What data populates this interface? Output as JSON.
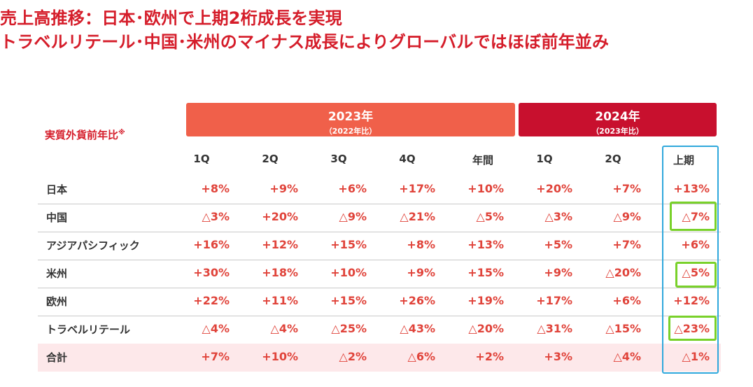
{
  "title": {
    "line1": "売上高推移：日本･欧州で上期2桁成長を実現",
    "line2": "トラベルリテール･中国･米州のマイナス成長によりグローバルではほぼ前年並み"
  },
  "metric_label": "実質外貨前年比",
  "metric_mark": "※",
  "banner_2023": {
    "year": "2023年",
    "sub": "（2022年比）"
  },
  "banner_2024": {
    "year": "2024年",
    "sub": "（2023年比）"
  },
  "columns": [
    "1Q",
    "2Q",
    "3Q",
    "4Q",
    "年間",
    "1Q",
    "2Q",
    "上期"
  ],
  "rows": [
    {
      "label": "日本",
      "values": [
        "+8%",
        "+9%",
        "+6%",
        "+17%",
        "+10%",
        "+20%",
        "+7%",
        "+13%"
      ]
    },
    {
      "label": "中国",
      "values": [
        "△3%",
        "+20%",
        "△9%",
        "△21%",
        "△5%",
        "△3%",
        "△9%",
        "△7%"
      ]
    },
    {
      "label": "アジアパシフィック",
      "values": [
        "+16%",
        "+12%",
        "+15%",
        "+8%",
        "+13%",
        "+5%",
        "+7%",
        "+6%"
      ]
    },
    {
      "label": "米州",
      "values": [
        "+30%",
        "+18%",
        "+10%",
        "+9%",
        "+15%",
        "+9%",
        "△20%",
        "△5%"
      ]
    },
    {
      "label": "欧州",
      "values": [
        "+22%",
        "+11%",
        "+15%",
        "+26%",
        "+19%",
        "+17%",
        "+6%",
        "+12%"
      ]
    },
    {
      "label": "トラベルリテール",
      "values": [
        "△4%",
        "△4%",
        "△25%",
        "△43%",
        "△20%",
        "△31%",
        "△15%",
        "△23%"
      ]
    },
    {
      "label": "合計",
      "values": [
        "+7%",
        "+10%",
        "△2%",
        "△6%",
        "+2%",
        "+3%",
        "△4%",
        "△1%"
      ]
    }
  ],
  "colors": {
    "title_red": "#d51d2a",
    "banner_2023": "#f0604a",
    "banner_2024": "#c8102e",
    "value_red": "#e0433a",
    "highlight_column": "#2fa8dc",
    "highlight_cell": "#79d12a",
    "total_row_bg": "#fde8ea"
  }
}
